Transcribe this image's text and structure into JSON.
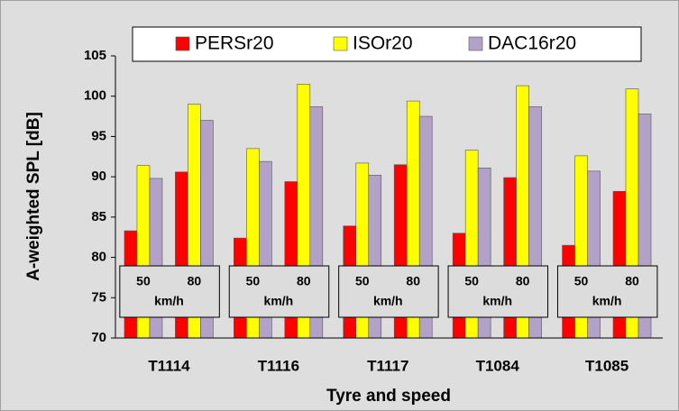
{
  "chart_data": {
    "type": "bar",
    "y_label": "A-weighted SPL [dB]",
    "x_label": "Tyre and speed",
    "groups": [
      "T1114",
      "T1116",
      "T1117",
      "T1084",
      "T1085"
    ],
    "categories": [
      "50",
      "80",
      "50",
      "80",
      "50",
      "80",
      "50",
      "80",
      "50",
      "80"
    ],
    "speed_unit": "km/h",
    "ylim": [
      70,
      105
    ],
    "yticks": [
      70,
      75,
      80,
      85,
      90,
      95,
      100,
      105
    ],
    "legend": "top",
    "series": [
      {
        "name": "PERSr20",
        "color": "#ff0000",
        "values": [
          83.3,
          90.6,
          82.4,
          89.4,
          83.9,
          91.5,
          83.0,
          89.9,
          81.5,
          88.2
        ]
      },
      {
        "name": "ISOr20",
        "color": "#ffff00",
        "values": [
          91.4,
          99.0,
          93.5,
          101.5,
          91.7,
          99.4,
          93.3,
          101.3,
          92.6,
          100.9
        ]
      },
      {
        "name": "DAC16r20",
        "color": "#b3a2c7",
        "values": [
          89.8,
          97.0,
          91.9,
          98.7,
          90.2,
          97.5,
          91.1,
          98.7,
          90.7,
          97.8
        ]
      }
    ]
  }
}
